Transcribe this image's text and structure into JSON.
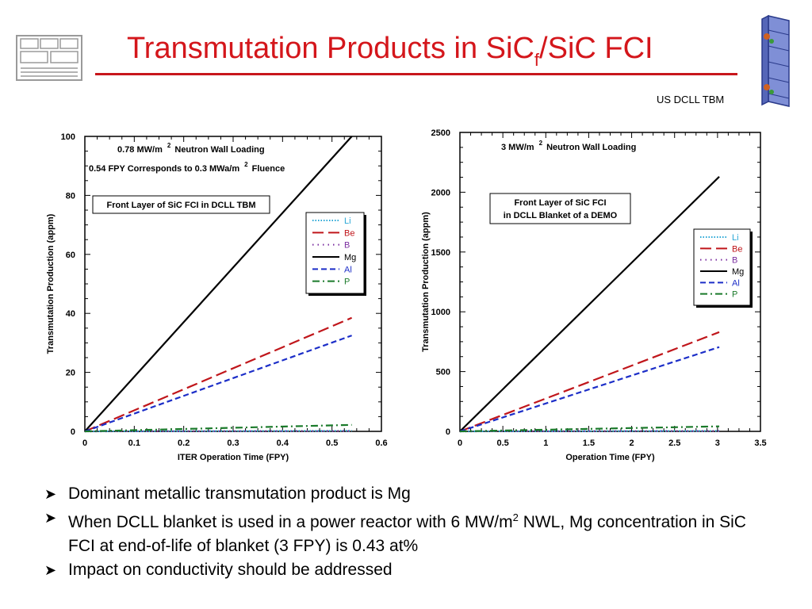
{
  "slide": {
    "title_main": "Transmutation Products in SiC",
    "title_sub": "f",
    "title_tail": "/SiC FCI",
    "subtitle": "US DCLL TBM",
    "bullets": [
      {
        "text": "Dominant metallic transmutation product is Mg",
        "sup": "",
        "cont": ""
      },
      {
        "text": "When DCLL blanket is used in a power reactor with 6 MW/m",
        "sup": "2",
        "cont": " NWL, Mg concentration in SiC FCI at end-of-life of blanket (3 FPY) is 0.43 at%"
      },
      {
        "text": "Impact on conductivity should be addressed",
        "sup": "",
        "cont": ""
      }
    ],
    "colors": {
      "title": "#d4161b",
      "rule": "#c8161b"
    },
    "icons": [
      "logo-icon",
      "tbm-device-icon",
      "arrow-bullet-icon"
    ]
  },
  "chart_data": [
    {
      "type": "line",
      "xlabel": "ITER Operation Time (FPY)",
      "ylabel": "Transmutation Production (appm)",
      "xlim": [
        0,
        0.6
      ],
      "ylim": [
        0,
        100
      ],
      "xticks": [
        0,
        0.1,
        0.2,
        0.3,
        0.4,
        0.5,
        0.6
      ],
      "yticks": [
        0,
        20,
        40,
        60,
        80,
        100
      ],
      "xtick_labels": [
        "0",
        "0.1",
        "0.2",
        "0.3",
        "0.4",
        "0.5",
        "0.6"
      ],
      "ytick_labels": [
        "0",
        "20",
        "40",
        "60",
        "80",
        "100"
      ],
      "grid": false,
      "legend": "upper-right",
      "annotations": [
        {
          "text": "0.78 MW/m",
          "sup": "2",
          "tail": " Neutron Wall Loading",
          "at": [
            0.07,
            95.5
          ]
        },
        {
          "text": "0.54 FPY Corresponds to 0.3 MWa/m",
          "sup": "2",
          "tail": " Fluence",
          "at": [
            0.01,
            89
          ]
        }
      ],
      "boxed_label": [
        "Front Layer of SiC FCI in DCLL TBM"
      ],
      "series": [
        {
          "name": "Li",
          "color": "#2aa7d6",
          "dash": "1.5,2",
          "x": [
            0,
            0.54
          ],
          "y": [
            0,
            0.2
          ]
        },
        {
          "name": "Be",
          "color": "#c0161b",
          "dash": "14,6",
          "x": [
            0,
            0.54
          ],
          "y": [
            0,
            38.5
          ]
        },
        {
          "name": "B",
          "color": "#7b2fa0",
          "dash": "1.5,5",
          "x": [
            0,
            0.54
          ],
          "y": [
            0,
            0.1
          ]
        },
        {
          "name": "Mg",
          "color": "#000000",
          "dash": "",
          "x": [
            0,
            0.54
          ],
          "y": [
            0,
            100
          ]
        },
        {
          "name": "Al",
          "color": "#1c2ec8",
          "dash": "7,4",
          "x": [
            0,
            0.54
          ],
          "y": [
            0,
            32.5
          ]
        },
        {
          "name": "P",
          "color": "#1a7a2a",
          "dash": "9,4,2,4",
          "x": [
            0,
            0.54
          ],
          "y": [
            0,
            2.2
          ]
        }
      ]
    },
    {
      "type": "line",
      "xlabel": "Operation Time (FPY)",
      "ylabel": "Transmutation Production (appm)",
      "xlim": [
        0,
        3.5
      ],
      "ylim": [
        0,
        2500
      ],
      "xticks": [
        0,
        0.5,
        1,
        1.5,
        2,
        2.5,
        3,
        3.5
      ],
      "yticks": [
        0,
        500,
        1000,
        1500,
        2000,
        2500
      ],
      "xtick_labels": [
        "0",
        "0.5",
        "1",
        "1.5",
        "2",
        "2.5",
        "3",
        "3.5"
      ],
      "ytick_labels": [
        "0",
        "500",
        "1000",
        "1500",
        "2000",
        "2500"
      ],
      "grid": false,
      "legend": "right",
      "annotations": [
        {
          "text": "3 MW/m",
          "sup": "2",
          "tail": " Neutron Wall Loading",
          "at": [
            0.47,
            2360
          ]
        }
      ],
      "boxed_label": [
        "Front Layer of SiC FCI",
        "in DCLL Blanket of a DEMO"
      ],
      "series": [
        {
          "name": "Li",
          "color": "#2aa7d6",
          "dash": "1.5,2",
          "x": [
            0,
            3.02
          ],
          "y": [
            0,
            4
          ]
        },
        {
          "name": "Be",
          "color": "#c0161b",
          "dash": "14,6",
          "x": [
            0,
            3.02
          ],
          "y": [
            0,
            830
          ]
        },
        {
          "name": "B",
          "color": "#7b2fa0",
          "dash": "1.5,5",
          "x": [
            0,
            3.02
          ],
          "y": [
            0,
            3
          ]
        },
        {
          "name": "Mg",
          "color": "#000000",
          "dash": "",
          "x": [
            0,
            3.02
          ],
          "y": [
            0,
            2130
          ]
        },
        {
          "name": "Al",
          "color": "#1c2ec8",
          "dash": "7,4",
          "x": [
            0,
            3.02
          ],
          "y": [
            0,
            705
          ]
        },
        {
          "name": "P",
          "color": "#1a7a2a",
          "dash": "9,4,2,4",
          "x": [
            0,
            3.02
          ],
          "y": [
            0,
            42
          ]
        }
      ]
    }
  ]
}
